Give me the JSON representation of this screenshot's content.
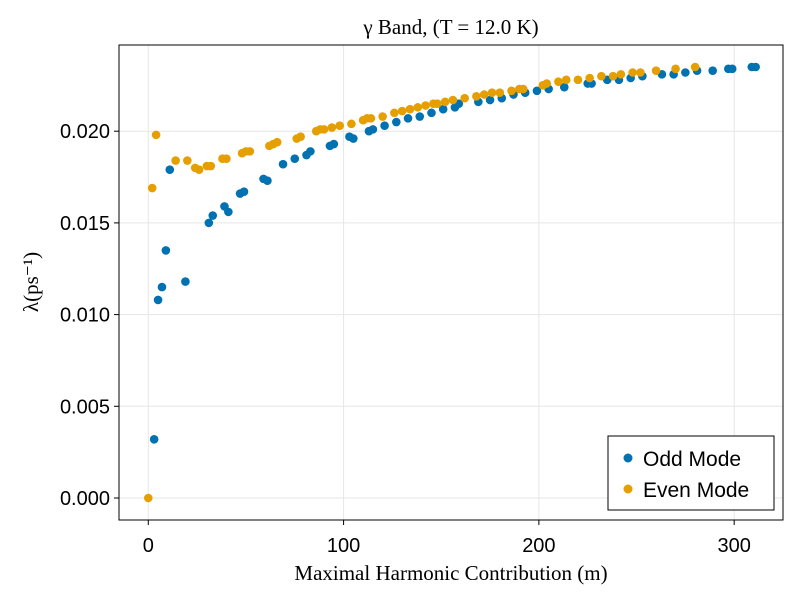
{
  "chart_data": {
    "type": "scatter",
    "title": "γ Band, (T = 12.0 K)",
    "xlabel": "Maximal Harmonic Contribution (m)",
    "ylabel": "λ(ps⁻¹)",
    "xlim": [
      -15,
      325
    ],
    "ylim": [
      -0.0012,
      0.0247
    ],
    "xticks": [
      0,
      100,
      200,
      300
    ],
    "xtick_labels": [
      "0",
      "100",
      "200",
      "300"
    ],
    "yticks": [
      0.0,
      0.005,
      0.01,
      0.015,
      0.02
    ],
    "ytick_labels": [
      "0.000",
      "0.005",
      "0.010",
      "0.015",
      "0.020"
    ],
    "grid": true,
    "legend_position": "bottom-right",
    "series": [
      {
        "name": "Odd Mode",
        "color": "#0072b2",
        "points": [
          [
            3,
            0.0032
          ],
          [
            5,
            0.0108
          ],
          [
            7,
            0.0115
          ],
          [
            9,
            0.0135
          ],
          [
            11,
            0.0179
          ],
          [
            19,
            0.0118
          ],
          [
            31,
            0.015
          ],
          [
            33,
            0.0154
          ],
          [
            39,
            0.0159
          ],
          [
            41,
            0.0156
          ],
          [
            47,
            0.0166
          ],
          [
            49,
            0.0167
          ],
          [
            59,
            0.0174
          ],
          [
            61,
            0.0173
          ],
          [
            69,
            0.0182
          ],
          [
            75,
            0.0185
          ],
          [
            81,
            0.0187
          ],
          [
            83,
            0.0189
          ],
          [
            93,
            0.0192
          ],
          [
            95,
            0.0193
          ],
          [
            103,
            0.0197
          ],
          [
            105,
            0.0196
          ],
          [
            113,
            0.02
          ],
          [
            115,
            0.0201
          ],
          [
            121,
            0.0203
          ],
          [
            127,
            0.0205
          ],
          [
            133,
            0.0207
          ],
          [
            139,
            0.0208
          ],
          [
            145,
            0.021
          ],
          [
            151,
            0.0212
          ],
          [
            157,
            0.0213
          ],
          [
            159,
            0.0215
          ],
          [
            169,
            0.0216
          ],
          [
            175,
            0.0217
          ],
          [
            181,
            0.0218
          ],
          [
            187,
            0.022
          ],
          [
            193,
            0.0221
          ],
          [
            199,
            0.0222
          ],
          [
            205,
            0.0223
          ],
          [
            213,
            0.0224
          ],
          [
            225,
            0.0226
          ],
          [
            227,
            0.0226
          ],
          [
            235,
            0.0228
          ],
          [
            241,
            0.0228
          ],
          [
            247,
            0.0229
          ],
          [
            253,
            0.023
          ],
          [
            263,
            0.0231
          ],
          [
            269,
            0.0231
          ],
          [
            275,
            0.0232
          ],
          [
            281,
            0.0233
          ],
          [
            289,
            0.0233
          ],
          [
            297,
            0.0234
          ],
          [
            299,
            0.0234
          ],
          [
            309,
            0.0235
          ],
          [
            311,
            0.0235
          ]
        ]
      },
      {
        "name": "Even Mode",
        "color": "#e69f00",
        "points": [
          [
            0,
            0.0
          ],
          [
            2,
            0.0169
          ],
          [
            4,
            0.0198
          ],
          [
            14,
            0.0184
          ],
          [
            20,
            0.0184
          ],
          [
            24,
            0.018
          ],
          [
            26,
            0.0179
          ],
          [
            30,
            0.0181
          ],
          [
            32,
            0.0181
          ],
          [
            38,
            0.0185
          ],
          [
            40,
            0.0185
          ],
          [
            48,
            0.0188
          ],
          [
            50,
            0.0189
          ],
          [
            52,
            0.0189
          ],
          [
            62,
            0.0192
          ],
          [
            64,
            0.0193
          ],
          [
            66,
            0.0194
          ],
          [
            76,
            0.0196
          ],
          [
            78,
            0.0197
          ],
          [
            86,
            0.02
          ],
          [
            88,
            0.0201
          ],
          [
            90,
            0.0201
          ],
          [
            94,
            0.0202
          ],
          [
            98,
            0.0203
          ],
          [
            104,
            0.0204
          ],
          [
            110,
            0.0206
          ],
          [
            112,
            0.0207
          ],
          [
            114,
            0.0207
          ],
          [
            120,
            0.0208
          ],
          [
            126,
            0.021
          ],
          [
            130,
            0.0211
          ],
          [
            134,
            0.0212
          ],
          [
            138,
            0.0213
          ],
          [
            142,
            0.0214
          ],
          [
            146,
            0.0215
          ],
          [
            148,
            0.0215
          ],
          [
            152,
            0.0216
          ],
          [
            156,
            0.0217
          ],
          [
            162,
            0.0218
          ],
          [
            168,
            0.0219
          ],
          [
            172,
            0.022
          ],
          [
            176,
            0.0221
          ],
          [
            180,
            0.0221
          ],
          [
            186,
            0.0222
          ],
          [
            190,
            0.0223
          ],
          [
            192,
            0.0223
          ],
          [
            202,
            0.0225
          ],
          [
            204,
            0.0226
          ],
          [
            210,
            0.0227
          ],
          [
            214,
            0.0228
          ],
          [
            220,
            0.0228
          ],
          [
            226,
            0.0229
          ],
          [
            232,
            0.023
          ],
          [
            238,
            0.023
          ],
          [
            242,
            0.0231
          ],
          [
            248,
            0.0232
          ],
          [
            252,
            0.0232
          ],
          [
            260,
            0.0233
          ],
          [
            270,
            0.0234
          ],
          [
            280,
            0.0235
          ]
        ]
      }
    ]
  }
}
